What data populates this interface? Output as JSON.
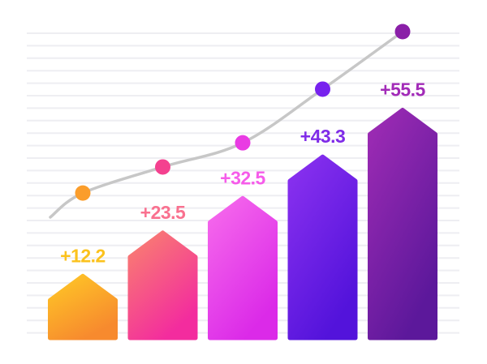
{
  "chart_data": {
    "type": "bar",
    "title": "",
    "xlabel": "",
    "ylabel": "",
    "categories": [],
    "legend": "none",
    "value_axis_visible": false,
    "category_axis_visible": false,
    "baseline_value": 0,
    "bars": [
      {
        "label": "+12.2",
        "value": 12.2,
        "color_top": "#FFC926",
        "color_bottom": "#F78A2E",
        "label_color": "#FBC21D",
        "dot_color": "#FB9D2B"
      },
      {
        "label": "+23.5",
        "value": 23.5,
        "color_top": "#F9836E",
        "color_bottom": "#F32C9E",
        "label_color": "#F9718F",
        "dot_color": "#F4418F"
      },
      {
        "label": "+32.5",
        "value": 32.5,
        "color_top": "#F76CEC",
        "color_bottom": "#DB2AE8",
        "label_color": "#F65CEA",
        "dot_color": "#E93BE3"
      },
      {
        "label": "+43.3",
        "value": 43.3,
        "color_top": "#8C32F0",
        "color_bottom": "#5313DB",
        "label_color": "#7F2BE8",
        "dot_color": "#7722EE"
      },
      {
        "label": "+55.5",
        "value": 55.5,
        "color_top": "#A02CB5",
        "color_bottom": "#5C189B",
        "label_color": "#A22BB8",
        "dot_color": "#8A1FA8"
      }
    ],
    "trend_line": {
      "type": "line",
      "color": "#C7C7C7",
      "dot_values_estimated": [
        33.8,
        40.6,
        46.9,
        60.9,
        75.9
      ],
      "tail_value_estimated": 27.5
    },
    "grid": {
      "visible": true,
      "orientation": "horizontal",
      "color": "#EEEEF2"
    }
  }
}
